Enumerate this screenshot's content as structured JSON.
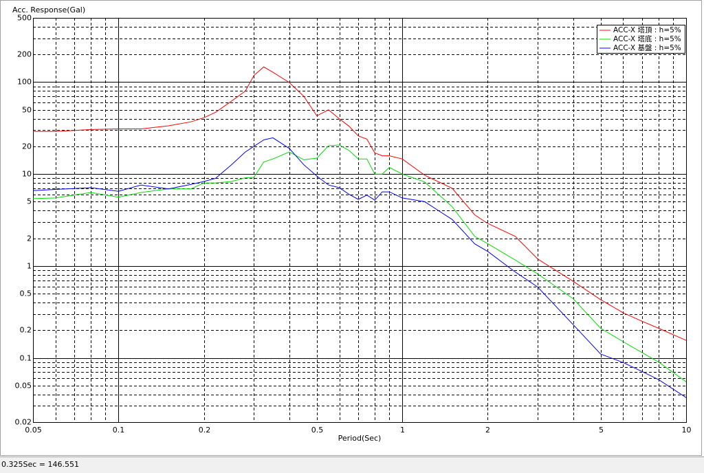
{
  "chart_data": {
    "type": "line",
    "y_label": "Acc. Response(Gal)",
    "x_label": "Period(Sec)",
    "log_x": true,
    "log_y": true,
    "grid": true,
    "legend": "upper right",
    "xlim": [
      0.05,
      10
    ],
    "ylim": [
      0.02,
      500
    ],
    "xticks": [
      0.05,
      0.1,
      0.2,
      0.5,
      1,
      2,
      5,
      10
    ],
    "yticks": [
      0.02,
      0.05,
      0.1,
      0.2,
      0.5,
      1,
      2,
      5,
      10,
      20,
      50,
      100,
      200,
      500
    ],
    "xgrid_minor": [
      0.06,
      0.07,
      0.08,
      0.09,
      0.3,
      0.4,
      0.6,
      0.7,
      0.8,
      0.9,
      3,
      4,
      6,
      7,
      8,
      9
    ],
    "ygrid_minor": [
      0.03,
      0.04,
      0.06,
      0.07,
      0.08,
      0.09,
      0.3,
      0.4,
      0.6,
      0.7,
      0.8,
      0.9,
      3,
      4,
      6,
      7,
      8,
      9,
      30,
      40,
      60,
      70,
      80,
      90,
      300,
      400
    ],
    "x": [
      0.05,
      0.06,
      0.08,
      0.1,
      0.12,
      0.15,
      0.18,
      0.2,
      0.22,
      0.25,
      0.28,
      0.3,
      0.325,
      0.35,
      0.4,
      0.45,
      0.5,
      0.55,
      0.6,
      0.65,
      0.7,
      0.75,
      0.8,
      0.85,
      0.9,
      1,
      1.2,
      1.5,
      1.8,
      2,
      2.5,
      3,
      4,
      5,
      6,
      7,
      8,
      10
    ],
    "series": [
      {
        "name": "ACC-X 塔頂 : h=5%",
        "color": "#ff0000",
        "values": [
          29,
          29,
          30.5,
          31,
          31,
          33.5,
          37,
          41,
          47,
          62,
          80,
          118,
          146.551,
          128,
          99,
          70,
          43,
          50,
          40,
          33,
          26,
          24,
          17,
          15.8,
          15.8,
          14.6,
          9.7,
          7,
          3.6,
          2.9,
          2.1,
          1.19,
          0.68,
          0.43,
          0.31,
          0.25,
          0.21,
          0.155
        ]
      },
      {
        "name": "ACC-X 塔底 : h=5%",
        "color": "#00dd00",
        "values": [
          5.4,
          5.5,
          6.3,
          5.6,
          6.3,
          6.9,
          6.9,
          8,
          8,
          8.3,
          9.1,
          9.2,
          13.5,
          14.6,
          17.4,
          14.3,
          14.9,
          20.3,
          20.7,
          18,
          14.6,
          14.6,
          10,
          10,
          11.8,
          10,
          8.2,
          4.4,
          2.1,
          1.75,
          1.16,
          0.82,
          0.44,
          0.21,
          0.15,
          0.114,
          0.09,
          0.055
        ]
      },
      {
        "name": "ACC-X 基盤 : h=5%",
        "color": "#0000ff",
        "values": [
          6.6,
          6.8,
          7.1,
          6.5,
          7.6,
          6.9,
          7.7,
          8.3,
          9,
          12.6,
          17.4,
          20,
          23.5,
          24.8,
          19,
          12.6,
          9.5,
          7.6,
          7.1,
          6,
          5.3,
          5.9,
          5.2,
          6.4,
          6.4,
          5.5,
          5,
          3.2,
          1.74,
          1.44,
          0.86,
          0.59,
          0.23,
          0.11,
          0.089,
          0.071,
          0.058,
          0.037
        ]
      }
    ]
  },
  "status_bar": {
    "text": "0.325Sec = 146.551"
  }
}
